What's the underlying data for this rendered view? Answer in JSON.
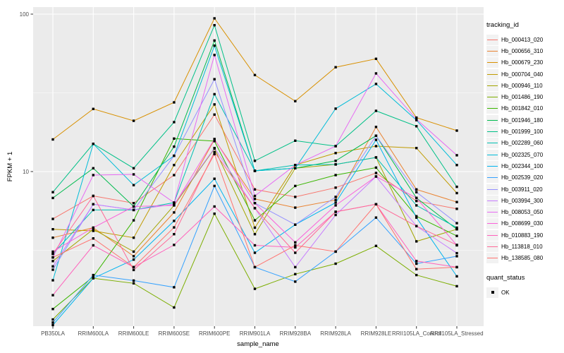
{
  "chart_data": {
    "type": "line",
    "title": "",
    "xlabel": "sample_name",
    "ylabel": "FPKM + 1",
    "y_scale": "log10",
    "ylim": [
      1.05,
      110
    ],
    "y_ticks": [
      {
        "value": 10,
        "label": "10"
      },
      {
        "value": 100,
        "label": "100"
      }
    ],
    "y_minor_ticks": [
      3.162,
      31.623
    ],
    "grid": "on",
    "panel_bg": "#EBEBEB",
    "grid_color": "#FFFFFF",
    "tick_label_color": "#4D4D4D",
    "point_shape": "black-square",
    "categories": [
      "PB350LA",
      "RRIM600LA",
      "RRIM600LE",
      "RRIM600SE",
      "RRIM600PE",
      "RRIM901LA",
      "RRIM928BA",
      "RRIM928LA",
      "RRIM928LE",
      "RRII105LA_Control",
      "RRII105LA_Stressed"
    ],
    "series": [
      {
        "name": "Hb_000413_020",
        "color": "#F8766D",
        "values": [
          5.0,
          7.0,
          6.3,
          9.5,
          23,
          7.7,
          6.9,
          7.9,
          9.8,
          6.5,
          5.8
        ]
      },
      {
        "name": "Hb_000656_310",
        "color": "#EA8331",
        "values": [
          3.8,
          4.4,
          2.9,
          5.5,
          16,
          6.7,
          5.9,
          6.6,
          19.2,
          7.7,
          6.4
        ]
      },
      {
        "name": "Hb_000679_230",
        "color": "#D89000",
        "values": [
          16,
          25,
          21,
          27.5,
          94,
          41,
          28,
          46,
          52,
          22,
          18.2
        ]
      },
      {
        "name": "Hb_000704_040",
        "color": "#C09B00",
        "values": [
          4.3,
          4.2,
          3.8,
          11,
          26.7,
          4.4,
          11,
          13.1,
          14.5,
          14.1,
          7.3
        ]
      },
      {
        "name": "Hb_000946_110",
        "color": "#A3A500",
        "values": [
          2.7,
          4.3,
          3.1,
          6.1,
          14,
          4.0,
          10.5,
          11.1,
          12.3,
          3.6,
          4.3
        ]
      },
      {
        "name": "Hb_001486_190",
        "color": "#7CAE00",
        "values": [
          1.15,
          2.1,
          1.95,
          1.37,
          5.4,
          1.8,
          2.23,
          2.6,
          3.37,
          2.2,
          1.87
        ]
      },
      {
        "name": "Hb_001842_010",
        "color": "#39B600",
        "values": [
          1.34,
          2.15,
          4.9,
          16.2,
          15.6,
          4.9,
          8.1,
          9.5,
          10.6,
          5.2,
          3.9
        ]
      },
      {
        "name": "Hb_001946_180",
        "color": "#00BB4E",
        "values": [
          6.8,
          10.5,
          6.0,
          14.4,
          68,
          10.1,
          10.5,
          11.7,
          16.9,
          6.8,
          4.3
        ]
      },
      {
        "name": "Hb_001999_100",
        "color": "#00C087",
        "values": [
          7.4,
          15,
          10.5,
          20.6,
          85,
          11.7,
          15.7,
          14.5,
          24.3,
          19.4,
          8.0
        ]
      },
      {
        "name": "Hb_002289_060",
        "color": "#00C0B2",
        "values": [
          3.0,
          5.7,
          5.7,
          6.35,
          31,
          10.1,
          11,
          11.1,
          12.3,
          6.1,
          4.4
        ]
      },
      {
        "name": "Hb_002325_070",
        "color": "#00BCD8",
        "values": [
          2.04,
          15,
          8.2,
          12.6,
          63,
          10.1,
          10.5,
          25.1,
          36,
          21.2,
          11
        ]
      },
      {
        "name": "Hb_002344_100",
        "color": "#00B4EF",
        "values": [
          1.06,
          2.1,
          2.76,
          4.86,
          9.0,
          3.05,
          4.6,
          6.35,
          15.9,
          5.1,
          2.16
        ]
      },
      {
        "name": "Hb_002539_020",
        "color": "#35A2FF",
        "values": [
          1.1,
          2.2,
          2.03,
          1.84,
          8.1,
          2.47,
          2.0,
          3.1,
          5.1,
          2.6,
          2.9
        ]
      },
      {
        "name": "Hb_003911_020",
        "color": "#9590FF",
        "values": [
          2.38,
          6.2,
          5.7,
          12.6,
          38.6,
          6.3,
          4.6,
          6.9,
          16.9,
          7.4,
          4.7
        ]
      },
      {
        "name": "Hb_003994_300",
        "color": "#C77CFF",
        "values": [
          2.5,
          6.2,
          5.7,
          6.2,
          14.1,
          5.85,
          2.47,
          5.3,
          9.3,
          4.5,
          3.03
        ]
      },
      {
        "name": "Hb_008053_050",
        "color": "#E76BF3",
        "values": [
          2.85,
          9.5,
          9.6,
          6.35,
          55,
          7.0,
          11,
          14.5,
          42,
          21.5,
          12.7
        ]
      },
      {
        "name": "Hb_008699_030",
        "color": "#FA62DB",
        "values": [
          3.1,
          4.4,
          6.0,
          6.1,
          16.1,
          6.3,
          3.55,
          6.1,
          9.3,
          6.8,
          3.4
        ]
      },
      {
        "name": "Hb_010883_190",
        "color": "#FF62BC",
        "values": [
          1.64,
          3.4,
          2.47,
          3.42,
          6.0,
          3.4,
          3.3,
          5.55,
          6.2,
          2.7,
          2.47
        ]
      },
      {
        "name": "Hb_113818_010",
        "color": "#FF6A98",
        "values": [
          3.0,
          7.0,
          2.37,
          4.0,
          13.3,
          5.85,
          3.05,
          5.55,
          6.2,
          4.5,
          3.42
        ]
      },
      {
        "name": "Hb_138585_080",
        "color": "#FF7370",
        "values": [
          2.85,
          3.76,
          2.47,
          4.42,
          12.9,
          2.47,
          3.4,
          3.1,
          6.2,
          2.4,
          2.47
        ]
      }
    ],
    "legend": {
      "color_title": "tracking_id",
      "shape_title": "quant_status",
      "shape_entries": [
        {
          "label": "OK",
          "shape": "black-square"
        }
      ]
    }
  }
}
